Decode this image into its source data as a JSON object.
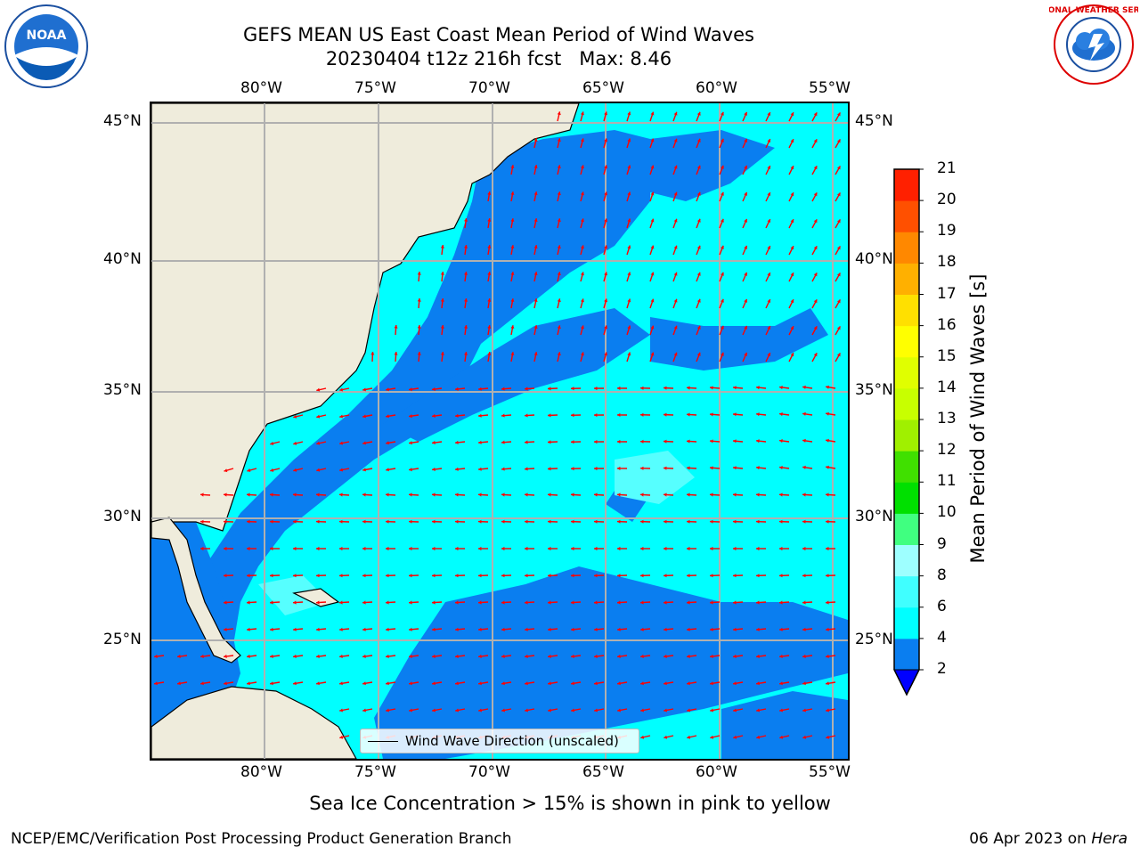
{
  "title": {
    "line1": "GEFS MEAN US East Coast Mean Period of Wind Waves",
    "line2": "20230404 t12z 216h fcst   Max: 8.46"
  },
  "logos": {
    "left_text": "NOAA",
    "right_text": "NATIONAL WEATHER SERVICE"
  },
  "map": {
    "lon_labels": [
      "80°W",
      "75°W",
      "70°W",
      "65°W",
      "60°W",
      "55°W"
    ],
    "lat_labels": [
      "45°N",
      "40°N",
      "35°N",
      "30°N",
      "25°N"
    ],
    "lon_range": [
      -85,
      -54.3
    ],
    "lat_range": [
      20.5,
      46
    ],
    "land_color": "#efecdc",
    "ocean_colors": {
      "2-4": "#0a7ef0",
      "4-6": "#00ffff",
      "6-8": "#56ffff"
    },
    "arrow_color": "#ff0000",
    "grid": true
  },
  "legend": {
    "label": "Wind Wave Direction (unscaled)"
  },
  "colorbar": {
    "label": "Mean Period of Wind Waves [s]",
    "ticks": [
      "2",
      "4",
      "6",
      "8",
      "9",
      "10",
      "11",
      "12",
      "13",
      "14",
      "15",
      "16",
      "17",
      "18",
      "19",
      "20",
      "21"
    ],
    "colors": [
      "#0a7ef0",
      "#00ffff",
      "#40ffff",
      "#9effff",
      "#40ff80",
      "#00e000",
      "#40e000",
      "#a0f000",
      "#c8ff00",
      "#e0ff00",
      "#ffff00",
      "#ffe000",
      "#ffb000",
      "#ff8800",
      "#ff5000",
      "#ff2000"
    ],
    "under_color": "#0000ff"
  },
  "footer": {
    "note": "Sea Ice Concentration > 15% is shown in pink to yellow",
    "credit_left": "NCEP/EMC/Verification Post Processing Product Generation Branch",
    "credit_right_date": "06 Apr 2023 on ",
    "credit_right_host": "Hera"
  }
}
